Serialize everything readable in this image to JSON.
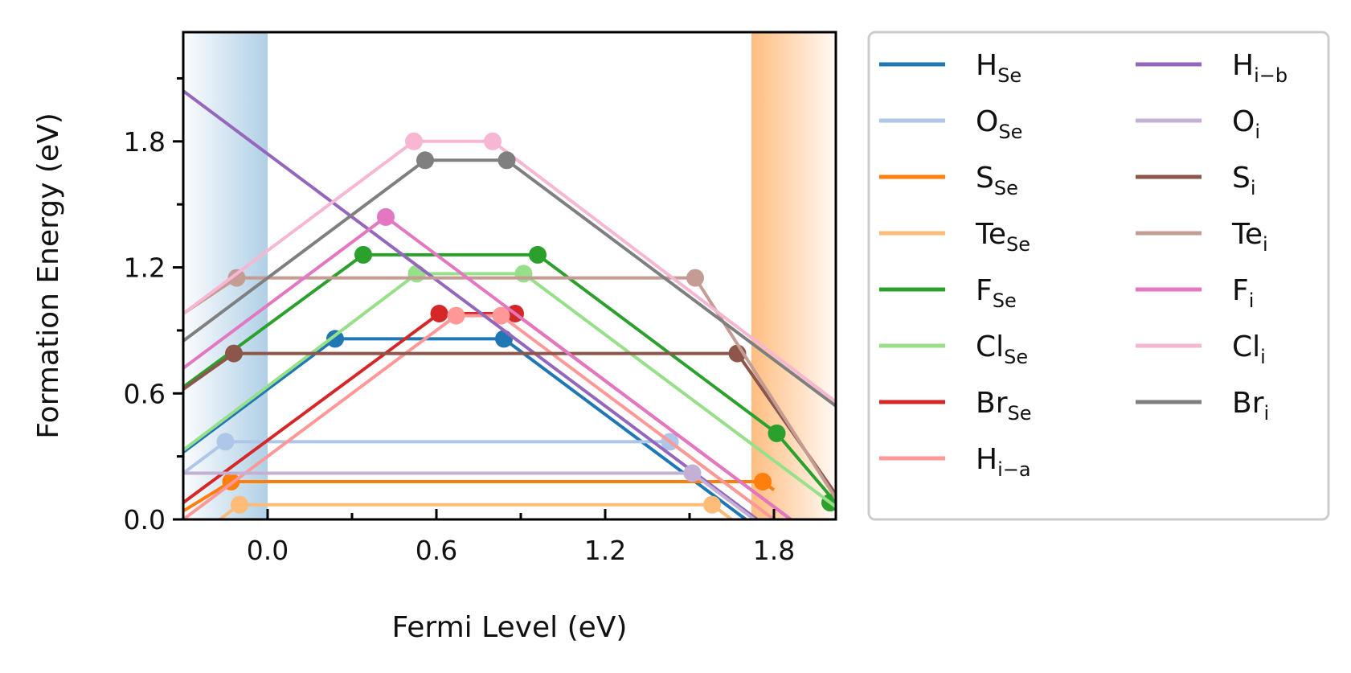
{
  "chart_data": {
    "type": "line",
    "xlabel": "Fermi Level (eV)",
    "ylabel": "Formation Energy (eV)",
    "xlim": [
      -0.3,
      2.02
    ],
    "ylim": [
      0.0,
      2.32
    ],
    "xticks": [
      0.0,
      0.6,
      1.2,
      1.8
    ],
    "xtick_labels": [
      "0.0",
      "0.6",
      "1.2",
      "1.8"
    ],
    "yticks": [
      0.0,
      0.6,
      1.2,
      1.8
    ],
    "ytick_labels": [
      "0.0",
      "0.6",
      "1.2",
      "1.8"
    ],
    "x_minor_step": 0.3,
    "y_minor_step": 0.3,
    "grid": false,
    "legend_placement": "outside-right",
    "legend_columns": 2,
    "valence_band_region": {
      "x": [
        -0.3,
        0.0
      ],
      "color": "#b0d0e6"
    },
    "conduction_band_region": {
      "x": [
        1.72,
        2.02
      ],
      "color": "#ffbd80"
    },
    "series": [
      {
        "name": "H",
        "sub": "Se",
        "color": "#1f77b4",
        "points": [
          [
            -0.3,
            0.32
          ],
          [
            0.24,
            0.86
          ],
          [
            0.84,
            0.86
          ],
          [
            1.7,
            0.0
          ]
        ],
        "markers": [
          [
            0.24,
            0.86
          ],
          [
            0.84,
            0.86
          ]
        ]
      },
      {
        "name": "O",
        "sub": "Se",
        "color": "#aec7e8",
        "points": [
          [
            -0.3,
            0.22
          ],
          [
            -0.15,
            0.37
          ],
          [
            1.43,
            0.37
          ],
          [
            1.76,
            0.04
          ]
        ],
        "markers": [
          [
            -0.15,
            0.37
          ],
          [
            1.43,
            0.37
          ]
        ]
      },
      {
        "name": "S",
        "sub": "Se",
        "color": "#ff7f0e",
        "points": [
          [
            -0.3,
            0.04
          ],
          [
            -0.13,
            0.18
          ],
          [
            1.76,
            0.18
          ],
          [
            1.8,
            0.14
          ]
        ],
        "markers": [
          [
            -0.13,
            0.18
          ],
          [
            1.76,
            0.18
          ]
        ]
      },
      {
        "name": "Te",
        "sub": "Se",
        "color": "#ffbb78",
        "points": [
          [
            -0.17,
            0.0
          ],
          [
            -0.1,
            0.07
          ],
          [
            1.58,
            0.07
          ],
          [
            1.65,
            0.0
          ]
        ],
        "markers": [
          [
            -0.1,
            0.07
          ],
          [
            1.58,
            0.07
          ]
        ]
      },
      {
        "name": "F",
        "sub": "Se",
        "color": "#2ca02c",
        "points": [
          [
            -0.3,
            0.63
          ],
          [
            0.34,
            1.26
          ],
          [
            0.96,
            1.26
          ],
          [
            1.81,
            0.41
          ],
          [
            2.02,
            0.08
          ]
        ],
        "markers": [
          [
            0.34,
            1.26
          ],
          [
            0.96,
            1.26
          ],
          [
            1.81,
            0.41
          ],
          [
            2.0,
            0.08
          ]
        ]
      },
      {
        "name": "Cl",
        "sub": "Se",
        "color": "#98df8a",
        "points": [
          [
            -0.3,
            0.33
          ],
          [
            0.53,
            1.17
          ],
          [
            0.91,
            1.17
          ],
          [
            2.02,
            0.06
          ]
        ],
        "markers": [
          [
            0.53,
            1.17
          ],
          [
            0.91,
            1.17
          ]
        ]
      },
      {
        "name": "Br",
        "sub": "Se",
        "color": "#d62728",
        "points": [
          [
            -0.3,
            0.08
          ],
          [
            0.61,
            0.98
          ],
          [
            0.88,
            0.98
          ],
          [
            1.86,
            0.0
          ]
        ],
        "markers": [
          [
            0.61,
            0.98
          ],
          [
            0.88,
            0.98
          ]
        ]
      },
      {
        "name": "H",
        "sub": "i−a",
        "color": "#ff9896",
        "points": [
          [
            -0.3,
            0.0
          ],
          [
            0.67,
            0.97
          ],
          [
            0.83,
            0.97
          ],
          [
            1.8,
            0.0
          ]
        ],
        "markers": [
          [
            0.67,
            0.97
          ],
          [
            0.83,
            0.97
          ]
        ]
      },
      {
        "name": "H",
        "sub": "i−b",
        "color": "#9467bd",
        "points": [
          [
            -0.3,
            2.04
          ],
          [
            1.74,
            0.0
          ]
        ],
        "markers": []
      },
      {
        "name": "O",
        "sub": "i",
        "color": "#c5b0d5",
        "points": [
          [
            -0.3,
            0.22
          ],
          [
            1.51,
            0.22
          ],
          [
            1.73,
            0.0
          ]
        ],
        "markers": [
          [
            1.51,
            0.22
          ]
        ]
      },
      {
        "name": "S",
        "sub": "i",
        "color": "#8c564b",
        "points": [
          [
            -0.3,
            0.62
          ],
          [
            -0.12,
            0.79
          ],
          [
            1.67,
            0.79
          ],
          [
            2.02,
            0.12
          ]
        ],
        "markers": [
          [
            -0.12,
            0.79
          ],
          [
            1.67,
            0.79
          ]
        ]
      },
      {
        "name": "Te",
        "sub": "i",
        "color": "#c49c94",
        "points": [
          [
            -0.3,
            0.98
          ],
          [
            -0.11,
            1.15
          ],
          [
            1.52,
            1.15
          ],
          [
            2.02,
            0.1
          ]
        ],
        "markers": [
          [
            -0.11,
            1.15
          ],
          [
            1.52,
            1.15
          ]
        ]
      },
      {
        "name": "F",
        "sub": "i",
        "color": "#e377c2",
        "points": [
          [
            -0.3,
            0.72
          ],
          [
            0.42,
            1.44
          ],
          [
            1.86,
            0.0
          ]
        ],
        "markers": [
          [
            0.42,
            1.44
          ]
        ]
      },
      {
        "name": "Cl",
        "sub": "i",
        "color": "#f7b6d2",
        "points": [
          [
            -0.3,
            0.98
          ],
          [
            0.52,
            1.8
          ],
          [
            0.8,
            1.8
          ],
          [
            2.02,
            0.56
          ]
        ],
        "markers": [
          [
            0.52,
            1.8
          ],
          [
            0.8,
            1.8
          ]
        ]
      },
      {
        "name": "Br",
        "sub": "i",
        "color": "#7f7f7f",
        "points": [
          [
            -0.3,
            0.85
          ],
          [
            0.56,
            1.71
          ],
          [
            0.85,
            1.71
          ],
          [
            2.02,
            0.54
          ]
        ],
        "markers": [
          [
            0.56,
            1.71
          ],
          [
            0.85,
            1.71
          ]
        ]
      }
    ]
  }
}
